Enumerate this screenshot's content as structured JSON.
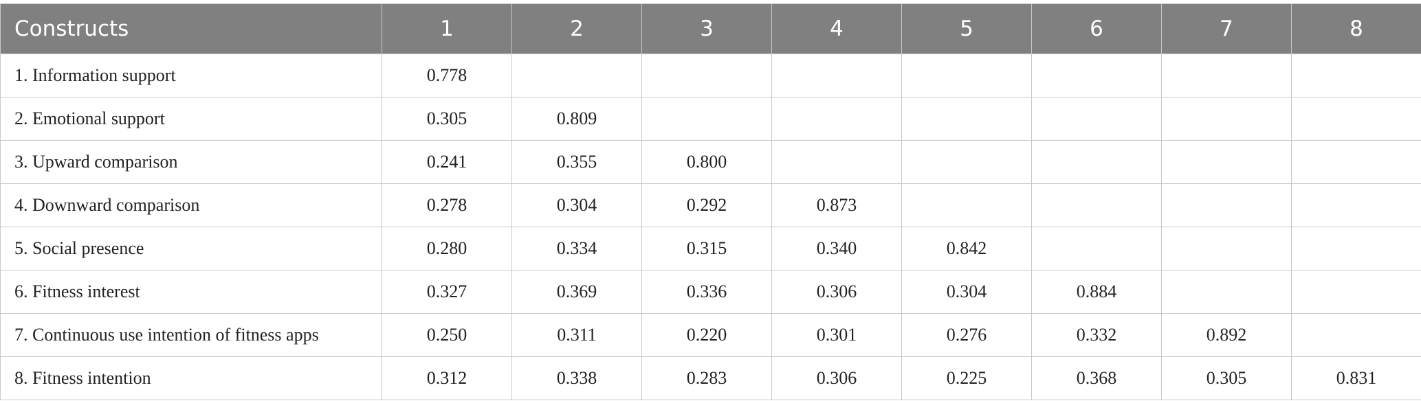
{
  "table": {
    "header": [
      "Constructs",
      "1",
      "2",
      "3",
      "4",
      "5",
      "6",
      "7",
      "8"
    ],
    "rows": [
      {
        "label": "1. Information support",
        "values": [
          "0.778"
        ]
      },
      {
        "label": "2. Emotional support",
        "values": [
          "0.305",
          "0.809"
        ]
      },
      {
        "label": "3. Upward comparison",
        "values": [
          "0.241",
          "0.355",
          "0.800"
        ]
      },
      {
        "label": "4. Downward comparison",
        "values": [
          "0.278",
          "0.304",
          "0.292",
          "0.873"
        ]
      },
      {
        "label": "5. Social presence",
        "values": [
          "0.280",
          "0.334",
          "0.315",
          "0.340",
          "0.842"
        ]
      },
      {
        "label": "6. Fitness interest",
        "values": [
          "0.327",
          "0.369",
          "0.336",
          "0.306",
          "0.304",
          "0.884"
        ]
      },
      {
        "label": "7. Continuous use intention of fitness apps",
        "values": [
          "0.250",
          "0.311",
          "0.220",
          "0.301",
          "0.276",
          "0.332",
          "0.892"
        ]
      },
      {
        "label": "8. Fitness intention",
        "values": [
          "0.312",
          "0.338",
          "0.283",
          "0.306",
          "0.225",
          "0.368",
          "0.305",
          "0.831"
        ]
      }
    ]
  }
}
